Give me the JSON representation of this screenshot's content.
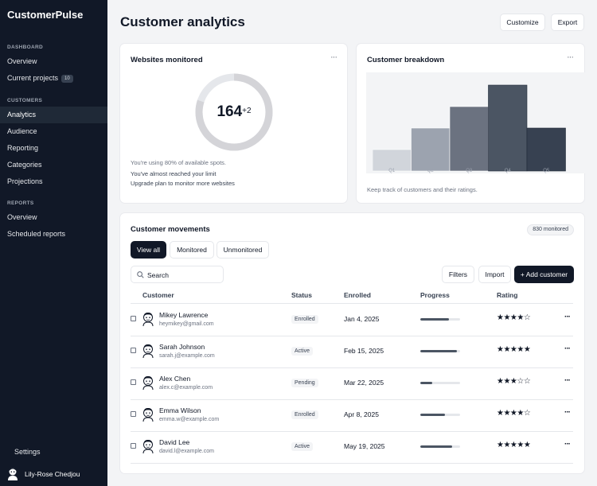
{
  "app": {
    "name": "CustomerPulse"
  },
  "sidebar": {
    "sections": [
      {
        "label": "DASHBOARD",
        "items": [
          {
            "label": "Overview"
          },
          {
            "label": "Current projects",
            "badge": "10"
          }
        ]
      },
      {
        "label": "CUSTOMERS",
        "items": [
          {
            "label": "Analytics",
            "active": true
          },
          {
            "label": "Audience"
          },
          {
            "label": "Reporting"
          },
          {
            "label": "Categories"
          },
          {
            "label": "Projections"
          }
        ]
      },
      {
        "label": "REPORTS",
        "items": [
          {
            "label": "Overview"
          },
          {
            "label": "Scheduled reports"
          }
        ]
      }
    ],
    "settings_label": "Settings",
    "user_name": "Lily-Rose Chedjou"
  },
  "header": {
    "title": "Customer analytics",
    "customize_label": "Customize",
    "export_label": "Export"
  },
  "websites": {
    "title": "Websites monitored",
    "count": "164",
    "delta": "+2",
    "usage_fraction": 0.8,
    "usage_text": "You're using 80% of available spots.",
    "limit_text": "You've almost reached your limit",
    "upgrade_text": "Upgrade plan to monitor more websites"
  },
  "breakdown": {
    "title": "Customer breakdown",
    "caption": "Keep track of customers and their ratings.",
    "chart_data": {
      "type": "bar",
      "categories": [
        "Q1",
        "Q2",
        "Q3",
        "Q4",
        "Q5"
      ],
      "values": [
        3,
        6,
        9,
        12,
        6
      ],
      "ylim": [
        0,
        13
      ]
    }
  },
  "movements": {
    "title": "Customer movements",
    "monitored_badge": "830 monitored",
    "tabs": [
      {
        "label": "View all",
        "active": true
      },
      {
        "label": "Monitored"
      },
      {
        "label": "Unmonitored"
      }
    ],
    "search_placeholder": "Search",
    "filters_label": "Filters",
    "import_label": "Import",
    "add_label": "+ Add customer",
    "columns": {
      "customer": "Customer",
      "status": "Status",
      "enrolled": "Enrolled",
      "progress": "Progress",
      "rating": "Rating"
    },
    "rows": [
      {
        "name": "Mikey Lawrence",
        "email": "heymikey@gmail.com",
        "status": "Enrolled",
        "enrolled": "Jan 4, 2025",
        "progress": 0.72,
        "stars": "★★★★☆"
      },
      {
        "name": "Sarah Johnson",
        "email": "sarah.j@example.com",
        "status": "Active",
        "enrolled": "Feb 15, 2025",
        "progress": 0.92,
        "stars": "★★★★★"
      },
      {
        "name": "Alex Chen",
        "email": "alex.c@example.com",
        "status": "Pending",
        "enrolled": "Mar 22, 2025",
        "progress": 0.3,
        "stars": "★★★☆☆"
      },
      {
        "name": "Emma Wilson",
        "email": "emma.w@example.com",
        "status": "Enrolled",
        "enrolled": "Apr 8, 2025",
        "progress": 0.62,
        "stars": "★★★★☆"
      },
      {
        "name": "David Lee",
        "email": "david.l@example.com",
        "status": "Active",
        "enrolled": "May 19, 2025",
        "progress": 0.8,
        "stars": "★★★★★"
      }
    ]
  }
}
